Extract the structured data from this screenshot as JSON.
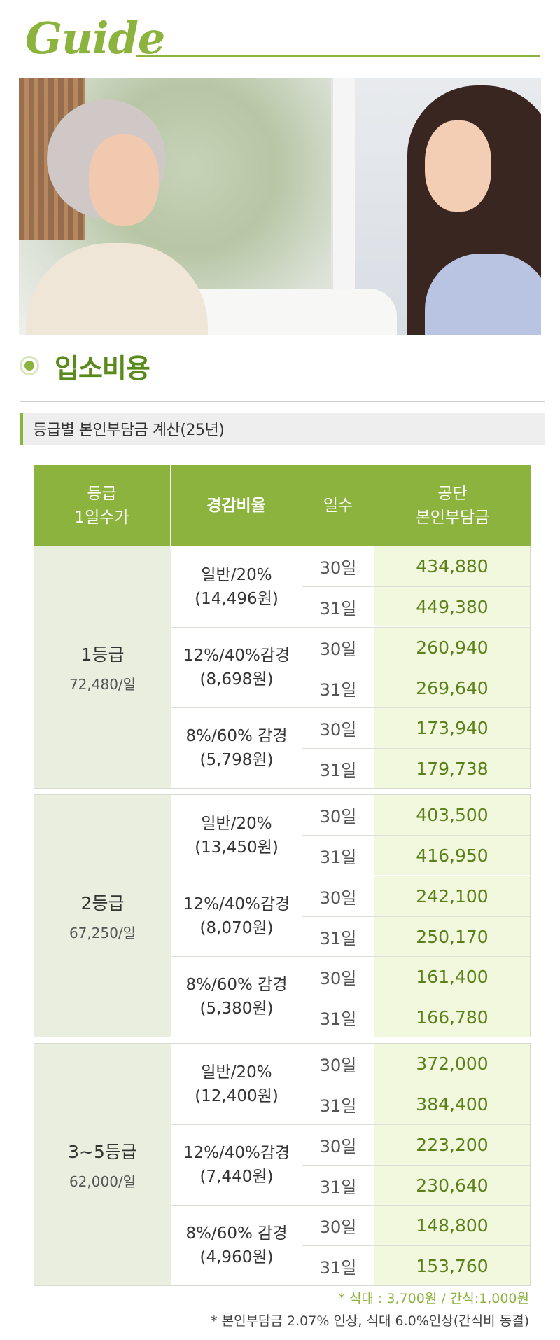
{
  "header": {
    "title": "Guide"
  },
  "photo": {
    "alt": "photo"
  },
  "section": {
    "title": "입소비용"
  },
  "subheading": "등급별 본인부담금 계산(25년)",
  "table": {
    "headers": {
      "grade_line1": "등급",
      "grade_line2": "1일수가",
      "rate": "경감비율",
      "days": "일수",
      "amount_line1": "공단",
      "amount_line2": "본인부담금"
    },
    "groups": [
      {
        "grade": "1등급",
        "price": "72,480/일",
        "rates": [
          {
            "label": "일반/20%",
            "sub": "(14,496원)",
            "rows": [
              {
                "day": "30일",
                "amount": "434,880"
              },
              {
                "day": "31일",
                "amount": "449,380"
              }
            ]
          },
          {
            "label": "12%/40%감경",
            "sub": "(8,698원)",
            "rows": [
              {
                "day": "30일",
                "amount": "260,940"
              },
              {
                "day": "31일",
                "amount": "269,640"
              }
            ]
          },
          {
            "label": "8%/60% 감경",
            "sub": "(5,798원)",
            "rows": [
              {
                "day": "30일",
                "amount": "173,940"
              },
              {
                "day": "31일",
                "amount": "179,738"
              }
            ]
          }
        ]
      },
      {
        "grade": "2등급",
        "price": "67,250/일",
        "rates": [
          {
            "label": "일반/20%",
            "sub": "(13,450원)",
            "rows": [
              {
                "day": "30일",
                "amount": "403,500"
              },
              {
                "day": "31일",
                "amount": "416,950"
              }
            ]
          },
          {
            "label": "12%/40%감경",
            "sub": "(8,070원)",
            "rows": [
              {
                "day": "30일",
                "amount": "242,100"
              },
              {
                "day": "31일",
                "amount": "250,170"
              }
            ]
          },
          {
            "label": "8%/60% 감경",
            "sub": "(5,380원)",
            "rows": [
              {
                "day": "30일",
                "amount": "161,400"
              },
              {
                "day": "31일",
                "amount": "166,780"
              }
            ]
          }
        ]
      },
      {
        "grade": "3~5등급",
        "price": "62,000/일",
        "rates": [
          {
            "label": "일반/20%",
            "sub": "(12,400원)",
            "rows": [
              {
                "day": "30일",
                "amount": "372,000"
              },
              {
                "day": "31일",
                "amount": "384,400"
              }
            ]
          },
          {
            "label": "12%/40%감경",
            "sub": "(7,440원)",
            "rows": [
              {
                "day": "30일",
                "amount": "223,200"
              },
              {
                "day": "31일",
                "amount": "230,640"
              }
            ]
          },
          {
            "label": "8%/60% 감경",
            "sub": "(4,960원)",
            "rows": [
              {
                "day": "30일",
                "amount": "148,800"
              },
              {
                "day": "31일",
                "amount": "153,760"
              }
            ]
          }
        ]
      }
    ]
  },
  "notes": [
    "* 식대 : 3,700원 / 간식:1,000원",
    "* 본인부담금 2.07% 인상,  식대  6.0%인상(간식비 동결)"
  ],
  "colors": {
    "accent": "#8cb33d",
    "amount_bg": "#f1f8de",
    "grade_bg": "#eaeedf"
  }
}
